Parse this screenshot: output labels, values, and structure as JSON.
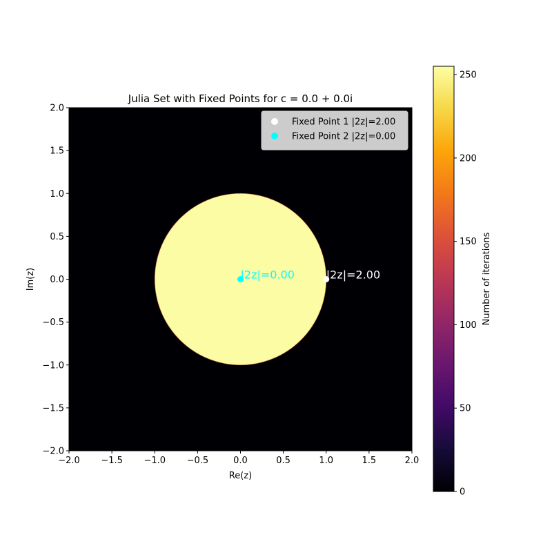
{
  "chart_data": {
    "type": "heatmap",
    "title": "Julia Set with Fixed Points for c = 0.0 + 0.0i",
    "xlabel": "Re(z)",
    "ylabel": "Im(z)",
    "xlim": [
      -2.0,
      2.0
    ],
    "ylim": [
      -2.0,
      2.0
    ],
    "x_ticks": [
      "−2.0",
      "−1.5",
      "−1.0",
      "−0.5",
      "0.0",
      "0.5",
      "1.0",
      "1.5",
      "2.0"
    ],
    "y_ticks": [
      "−2.0",
      "−1.5",
      "−1.0",
      "−0.5",
      "0.0",
      "0.5",
      "1.0",
      "1.5",
      "2.0"
    ],
    "grid": false,
    "colormap": "inferno",
    "julia_set": {
      "c_re": 0.0,
      "c_im": 0.0,
      "shape": "unit disk |z| <= 1",
      "inside_iterations": 255,
      "outside_iterations": 0,
      "inside_color": "#fbfca4",
      "outside_color": "#000004"
    },
    "points": [
      {
        "name": "Fixed Point 1 |2z|=2.00",
        "x": 1.0,
        "y": 0.0,
        "color": "#ffffff",
        "annotation": "|2z|=2.00"
      },
      {
        "name": "Fixed Point 2 |2z|=0.00",
        "x": 0.0,
        "y": 0.0,
        "color": "#00ffff",
        "annotation": "|2z|=0.00"
      }
    ],
    "legend": {
      "placement": "upper-right"
    },
    "colorbar": {
      "label": "Number of iterations",
      "range": [
        0,
        255
      ],
      "ticks": [
        0,
        50,
        100,
        150,
        200,
        250
      ]
    }
  }
}
